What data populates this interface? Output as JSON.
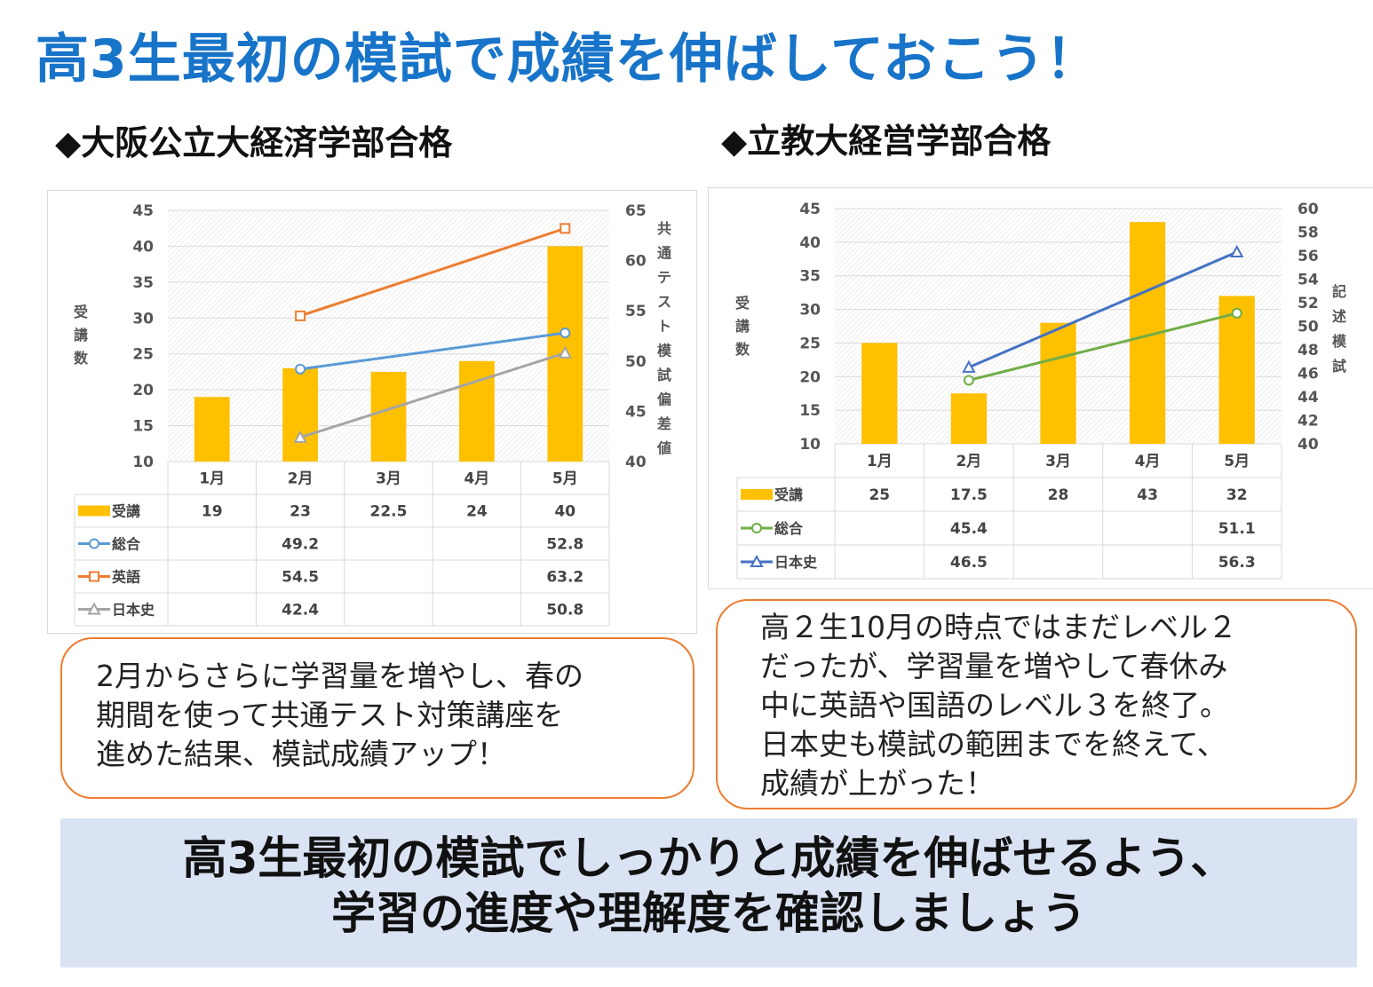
{
  "title": "高3生最初の模試で成績を伸ばしておこう！",
  "sections": [
    {
      "heading": "◆大阪公立大経済学部合格",
      "callout": [
        "2月からさらに学習量を増やし、春の",
        "期間を使って共通テスト対策講座を",
        "進めた結果、模試成績アップ！"
      ]
    },
    {
      "heading": "◆立教大経営学部合格",
      "callout": [
        "高２生10月の時点ではまだレベル２",
        "だったが、学習量を増やして春休み",
        "中に英語や国語のレベル３を終了。",
        "日本史も模試の範囲までを終えて、",
        "成績が上がった！"
      ]
    }
  ],
  "footer": {
    "line1": "高3生最初の模試でしっかりと成績を伸ばせるよう、",
    "line2": "学習の進度や理解度を確認しましょう"
  },
  "colors": {
    "title": "#1874c9",
    "bar": "#ffc000",
    "総合_chart1": "#5b9bd5",
    "英語": "#ed7d31",
    "日本史_chart1": "#a5a5a5",
    "総合_chart2": "#70ad47",
    "日本史_chart2": "#4472c4",
    "callout_border": "#ed7d31",
    "footer_bg": "#dae3f3"
  },
  "chart_data": [
    {
      "type": "bar",
      "categories": [
        "1月",
        "2月",
        "3月",
        "4月",
        "5月"
      ],
      "series": [
        {
          "name": "受講",
          "type": "bar",
          "axis": "left",
          "marker": "square-fill",
          "values": [
            19,
            23,
            22.5,
            24,
            40
          ],
          "labels": [
            "19",
            "23",
            "22.5",
            "24",
            "40"
          ]
        },
        {
          "name": "総合",
          "type": "line",
          "axis": "right",
          "marker": "circle",
          "values": [
            null,
            49.2,
            null,
            null,
            52.8
          ],
          "labels": [
            "",
            "49.2",
            "",
            "",
            "52.8"
          ]
        },
        {
          "name": "英語",
          "type": "line",
          "axis": "right",
          "marker": "square",
          "values": [
            null,
            54.5,
            null,
            null,
            63.2
          ],
          "labels": [
            "",
            "54.5",
            "",
            "",
            "63.2"
          ]
        },
        {
          "name": "日本史",
          "type": "line",
          "axis": "right",
          "marker": "triangle",
          "values": [
            null,
            42.4,
            null,
            null,
            50.8
          ],
          "labels": [
            "",
            "42.4",
            "",
            "",
            "50.8"
          ]
        }
      ],
      "ylabel": "受講数",
      "y2label": "共通テスト模試偏差値",
      "ylim": [
        10,
        45
      ],
      "yticks": [
        10,
        15,
        20,
        25,
        30,
        35,
        40,
        45
      ],
      "y2lim": [
        40,
        65
      ],
      "y2ticks": [
        40,
        45,
        50,
        55,
        60,
        65
      ],
      "grid": true,
      "legend": "data-table"
    },
    {
      "type": "bar",
      "categories": [
        "1月",
        "2月",
        "3月",
        "4月",
        "5月"
      ],
      "series": [
        {
          "name": "受講",
          "type": "bar",
          "axis": "left",
          "marker": "square-fill",
          "values": [
            25,
            17.5,
            28,
            43,
            32
          ],
          "labels": [
            "25",
            "17.5",
            "28",
            "43",
            "32"
          ]
        },
        {
          "name": "総合",
          "type": "line",
          "axis": "right",
          "marker": "circle",
          "values": [
            null,
            45.4,
            null,
            null,
            51.1
          ],
          "labels": [
            "",
            "45.4",
            "",
            "",
            "51.1"
          ]
        },
        {
          "name": "日本史",
          "type": "line",
          "axis": "right",
          "marker": "triangle",
          "values": [
            null,
            46.5,
            null,
            null,
            56.3
          ],
          "labels": [
            "",
            "46.5",
            "",
            "",
            "56.3"
          ]
        }
      ],
      "ylabel": "受講数",
      "y2label": "記述模試",
      "ylim": [
        10,
        45
      ],
      "yticks": [
        10,
        15,
        20,
        25,
        30,
        35,
        40,
        45
      ],
      "y2lim": [
        40,
        60
      ],
      "y2ticks": [
        40,
        42,
        44,
        46,
        48,
        50,
        52,
        54,
        56,
        58,
        60
      ],
      "grid": true,
      "legend": "data-table"
    }
  ]
}
